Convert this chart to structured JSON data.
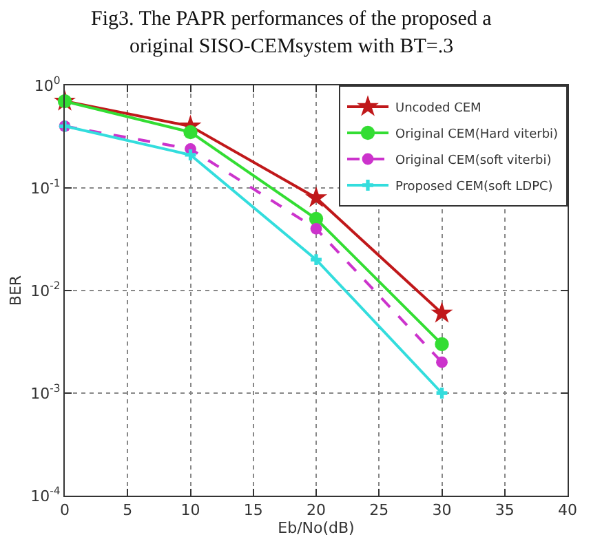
{
  "chart_data": {
    "type": "line",
    "title": "Fig3. The PAPR performances of the proposed a",
    "subtitle": "original SISO-CEMsystem with BT=.3",
    "xlabel": "Eb/No(dB)",
    "ylabel": "BER",
    "x": [
      0,
      10,
      20,
      30
    ],
    "series": [
      {
        "name": "Uncoded CEM",
        "color": "#c0181a",
        "values": [
          0.7,
          0.4,
          0.08,
          0.006
        ],
        "marker": "star",
        "line_style": "solid"
      },
      {
        "name": "Original CEM(Hard viterbi)",
        "color": "#33dd33",
        "values": [
          0.7,
          0.35,
          0.05,
          0.003
        ],
        "marker": "circle",
        "line_style": "solid"
      },
      {
        "name": "Original CEM(soft viterbi)",
        "color": "#cc33cc",
        "values": [
          0.4,
          0.24,
          0.04,
          0.002
        ],
        "marker": "circle",
        "line_style": "dashed"
      },
      {
        "name": "Proposed CEM(soft LDPC)",
        "color": "#33dddd",
        "values": [
          0.4,
          0.21,
          0.02,
          0.001
        ],
        "marker": "cross",
        "line_style": "solid"
      }
    ],
    "log": "y",
    "xlim": [
      0,
      40
    ],
    "xticks": [
      0,
      5,
      10,
      15,
      20,
      25,
      30,
      35,
      40
    ],
    "ylim": [
      0.0001,
      1
    ],
    "yticks": [
      {
        "value": 0.0001,
        "label": "10$^{-4}$"
      },
      {
        "value": 0.001,
        "label": "10$^{-3}$"
      },
      {
        "value": 0.01,
        "label": "10$^{-2}$"
      },
      {
        "value": 0.1,
        "label": "10$^{-1}$"
      },
      {
        "value": 1,
        "label": "10$^{0}$"
      }
    ],
    "grid": true,
    "legend": "top right"
  }
}
